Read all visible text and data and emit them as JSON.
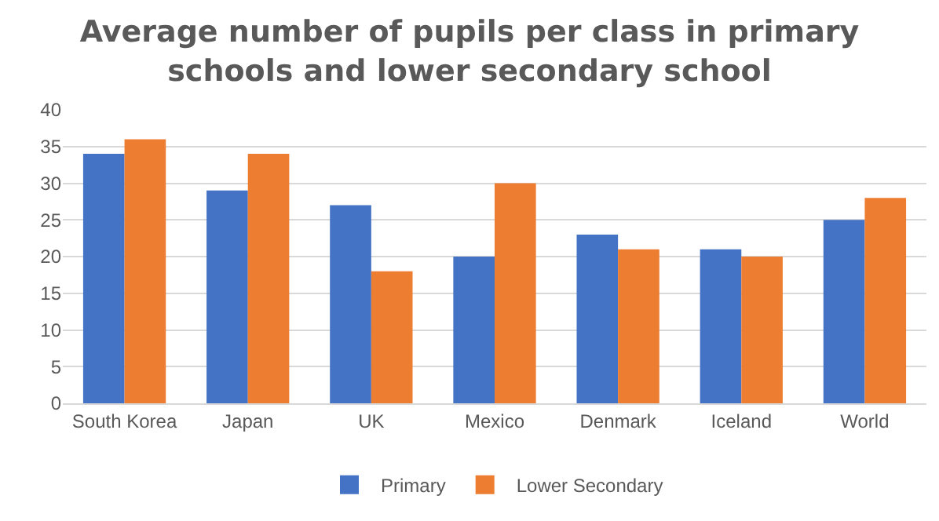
{
  "chart_data": {
    "type": "bar",
    "title": "Average number of pupils per class in primary schools and lower secondary school",
    "categories": [
      "South Korea",
      "Japan",
      "UK",
      "Mexico",
      "Denmark",
      "Iceland",
      "World"
    ],
    "series": [
      {
        "name": "Primary",
        "color": "#4472c4",
        "values": [
          34,
          29,
          27,
          20,
          23,
          21,
          25
        ]
      },
      {
        "name": "Lower Secondary",
        "color": "#ed7d31",
        "values": [
          36,
          34,
          18,
          30,
          21,
          20,
          28
        ]
      }
    ],
    "ylim": [
      0,
      40
    ],
    "yticks": [
      0,
      5,
      10,
      15,
      20,
      25,
      30,
      35,
      40
    ],
    "grid": "y",
    "legend": "bottom"
  }
}
